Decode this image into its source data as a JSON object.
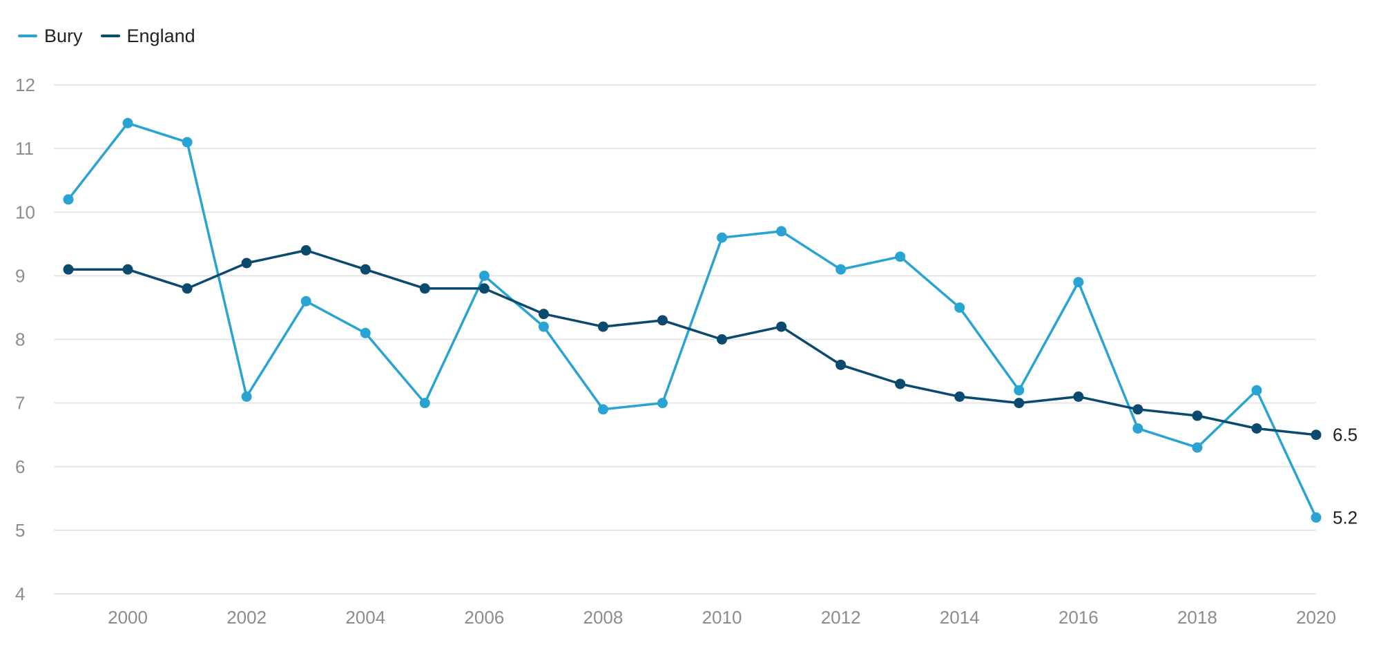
{
  "chart_data": {
    "type": "line",
    "title": "",
    "xlabel": "",
    "ylabel": "",
    "x": [
      1999,
      2000,
      2001,
      2002,
      2003,
      2004,
      2005,
      2006,
      2007,
      2008,
      2009,
      2010,
      2011,
      2012,
      2013,
      2014,
      2015,
      2016,
      2017,
      2018,
      2019,
      2020
    ],
    "xticks": [
      2000,
      2002,
      2004,
      2006,
      2008,
      2010,
      2012,
      2014,
      2016,
      2018,
      2020
    ],
    "xlim": [
      1999,
      2020
    ],
    "yticks": [
      4,
      5,
      6,
      7,
      8,
      9,
      10,
      11,
      12
    ],
    "ylim": [
      4,
      12
    ],
    "grid": "horizontal",
    "legend_position": "top-left",
    "series": [
      {
        "name": "Bury",
        "color": "#29a3d1",
        "values": [
          10.2,
          11.4,
          11.1,
          7.1,
          8.6,
          8.1,
          7.0,
          9.0,
          8.2,
          6.9,
          7.0,
          9.6,
          9.7,
          9.1,
          9.3,
          8.5,
          7.2,
          8.9,
          6.6,
          6.3,
          7.2,
          5.2
        ],
        "end_label": "5.2"
      },
      {
        "name": "England",
        "color": "#0b4a6f",
        "values": [
          9.1,
          9.1,
          8.8,
          9.2,
          9.4,
          9.1,
          8.8,
          8.8,
          8.4,
          8.2,
          8.3,
          8.0,
          8.2,
          7.6,
          7.3,
          7.1,
          7.0,
          7.1,
          6.9,
          6.8,
          6.6,
          6.5
        ],
        "end_label": "6.5"
      }
    ]
  }
}
